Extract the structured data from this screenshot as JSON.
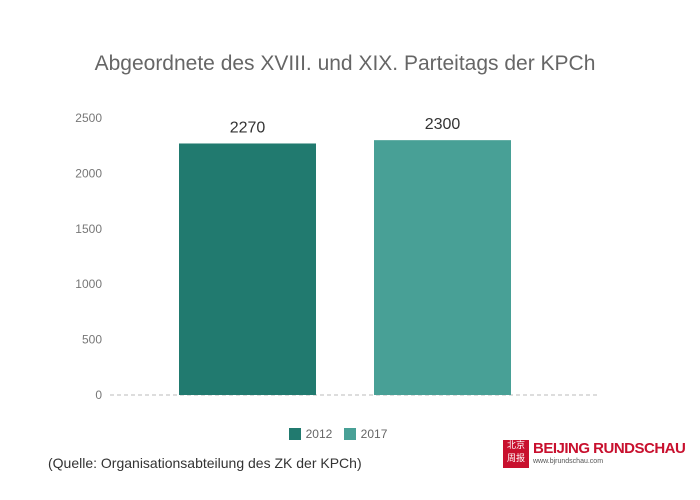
{
  "chart_data": {
    "type": "bar",
    "title": "Abgeordnete des XVIII. und XIX. Parteitags der KPCh",
    "categories": [
      "2012",
      "2017"
    ],
    "values": [
      2270,
      2300
    ],
    "colors": [
      "#217a6f",
      "#48a096"
    ],
    "ylim": [
      0,
      2500
    ],
    "yticks": [
      0,
      500,
      1000,
      1500,
      2000,
      2500
    ],
    "grid": false,
    "legend": "bottom"
  },
  "source": "(Quelle: Organisationsabteilung des ZK der KPCh)",
  "logo": {
    "seal": "北京周报",
    "name": "BEIJING RUNDSCHAU",
    "url": "www.bjrundschau.com"
  }
}
